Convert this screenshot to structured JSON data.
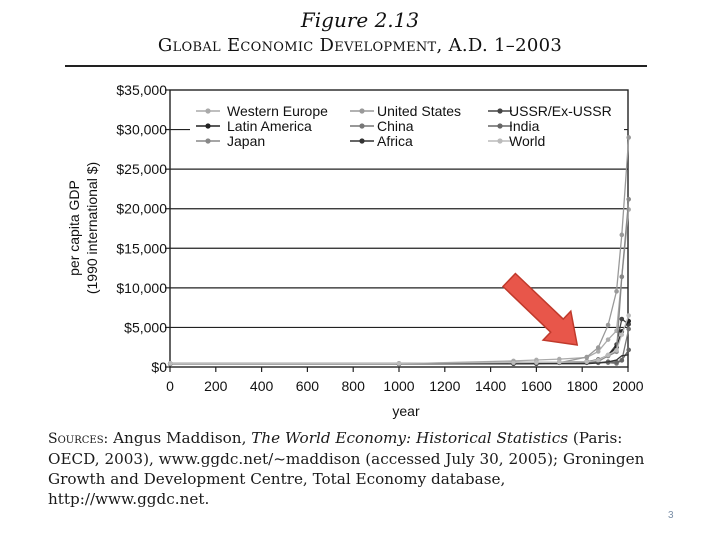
{
  "figure": {
    "number": "Figure 2.13",
    "title": "Global Economic Development, A.D. 1–2003"
  },
  "chart_data": {
    "type": "line",
    "ylabel_line1": "per capita GDP",
    "ylabel_line2": "(1990 international $)",
    "xlabel": "year",
    "xlim": [
      0,
      2000
    ],
    "ylim": [
      0,
      35000
    ],
    "x_ticks": [
      "0",
      "200",
      "400",
      "600",
      "800",
      "1000",
      "1200",
      "1400",
      "1600",
      "1800",
      "2000"
    ],
    "y_ticks": [
      "$0",
      "$5,000",
      "$10,000",
      "$15,000",
      "$20,000",
      "$25,000",
      "$30,000",
      "$35,000"
    ],
    "grid": "horizontal",
    "legend_placement": "top",
    "series": [
      {
        "name": "Western Europe",
        "color": "#aaaaaa",
        "points": [
          [
            1,
            450
          ],
          [
            1000,
            400
          ],
          [
            1500,
            770
          ],
          [
            1600,
            890
          ],
          [
            1700,
            1000
          ],
          [
            1820,
            1200
          ],
          [
            1870,
            1960
          ],
          [
            1913,
            3460
          ],
          [
            1950,
            4580
          ],
          [
            1973,
            11400
          ],
          [
            2003,
            19900
          ]
        ]
      },
      {
        "name": "United States",
        "color": "#999999",
        "points": [
          [
            1,
            400
          ],
          [
            1000,
            400
          ],
          [
            1500,
            400
          ],
          [
            1600,
            400
          ],
          [
            1700,
            530
          ],
          [
            1820,
            1260
          ],
          [
            1870,
            2450
          ],
          [
            1913,
            5300
          ],
          [
            1950,
            9560
          ],
          [
            1973,
            16700
          ],
          [
            2003,
            29000
          ]
        ]
      },
      {
        "name": "USSR/Ex-USSR",
        "color": "#444444",
        "points": [
          [
            1,
            400
          ],
          [
            1000,
            400
          ],
          [
            1500,
            500
          ],
          [
            1600,
            550
          ],
          [
            1700,
            610
          ],
          [
            1820,
            690
          ],
          [
            1870,
            940
          ],
          [
            1913,
            1490
          ],
          [
            1950,
            2840
          ],
          [
            1973,
            6060
          ],
          [
            2003,
            5400
          ]
        ]
      },
      {
        "name": "Latin America",
        "color": "#222222",
        "points": [
          [
            1,
            400
          ],
          [
            1000,
            400
          ],
          [
            1500,
            420
          ],
          [
            1600,
            440
          ],
          [
            1700,
            530
          ],
          [
            1820,
            690
          ],
          [
            1870,
            680
          ],
          [
            1913,
            1480
          ],
          [
            1950,
            2510
          ],
          [
            1973,
            4500
          ],
          [
            2003,
            5800
          ]
        ]
      },
      {
        "name": "China",
        "color": "#777777",
        "points": [
          [
            1,
            450
          ],
          [
            1000,
            450
          ],
          [
            1500,
            600
          ],
          [
            1600,
            600
          ],
          [
            1700,
            600
          ],
          [
            1820,
            600
          ],
          [
            1870,
            530
          ],
          [
            1913,
            550
          ],
          [
            1950,
            450
          ],
          [
            1973,
            840
          ],
          [
            2003,
            4800
          ]
        ]
      },
      {
        "name": "India",
        "color": "#666666",
        "points": [
          [
            1,
            450
          ],
          [
            1000,
            450
          ],
          [
            1500,
            550
          ],
          [
            1600,
            550
          ],
          [
            1700,
            550
          ],
          [
            1820,
            530
          ],
          [
            1870,
            530
          ],
          [
            1913,
            670
          ],
          [
            1950,
            620
          ],
          [
            1973,
            850
          ],
          [
            2003,
            2160
          ]
        ]
      },
      {
        "name": "Japan",
        "color": "#888888",
        "points": [
          [
            1,
            400
          ],
          [
            1000,
            430
          ],
          [
            1500,
            500
          ],
          [
            1600,
            520
          ],
          [
            1700,
            570
          ],
          [
            1820,
            670
          ],
          [
            1870,
            740
          ],
          [
            1913,
            1390
          ],
          [
            1950,
            1920
          ],
          [
            1973,
            11400
          ],
          [
            2003,
            21200
          ]
        ]
      },
      {
        "name": "Africa",
        "color": "#333333",
        "points": [
          [
            1,
            430
          ],
          [
            1000,
            430
          ],
          [
            1500,
            410
          ],
          [
            1600,
            420
          ],
          [
            1700,
            420
          ],
          [
            1820,
            420
          ],
          [
            1870,
            500
          ],
          [
            1913,
            640
          ],
          [
            1950,
            890
          ],
          [
            1973,
            1410
          ],
          [
            2003,
            1550
          ]
        ]
      },
      {
        "name": "World",
        "color": "#bbbbbb",
        "points": [
          [
            1,
            460
          ],
          [
            1000,
            450
          ],
          [
            1500,
            570
          ],
          [
            1600,
            590
          ],
          [
            1700,
            620
          ],
          [
            1820,
            670
          ],
          [
            1870,
            870
          ],
          [
            1913,
            1530
          ],
          [
            1950,
            2110
          ],
          [
            1973,
            4090
          ],
          [
            2003,
            6500
          ]
        ]
      }
    ],
    "annotation": {
      "type": "arrow",
      "color": "#e8564a",
      "points_to": [
        1800,
        0
      ]
    }
  },
  "sources": {
    "lead": "Sources:",
    "line1_a": " Angus Maddison, ",
    "line1_title": "The World Economy: Historical Statistics",
    "line1_b": " (Paris: OECD, 2003), www.ggdc.net/~maddison (accessed July 30, 2005); Groningen Growth and Development Centre, Total Economy database, http://www.ggdc.net."
  },
  "page_number": "3"
}
